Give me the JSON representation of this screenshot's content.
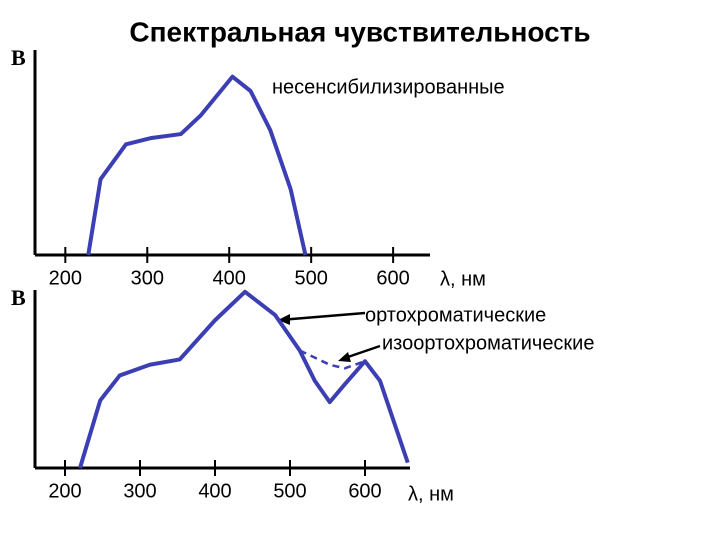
{
  "chart_data": [
    {
      "type": "line",
      "title": "Спектральная чувствительность",
      "ylabel": "B",
      "xlabel": "λ, нм",
      "xlim": [
        163,
        645
      ],
      "ylim": [
        0,
        100
      ],
      "xticks": [
        200,
        300,
        400,
        500,
        600
      ],
      "series": [
        {
          "name": "несенсибилизированные",
          "color": "#3c3fb4",
          "dashed": false,
          "x": [
            228,
            243,
            274,
            304,
            341,
            365,
            404,
            426,
            450,
            475,
            493
          ],
          "values": [
            0,
            37,
            54,
            57,
            59,
            68,
            87,
            80,
            61,
            32,
            0
          ]
        }
      ]
    },
    {
      "type": "line",
      "ylabel": "B",
      "xlabel": "λ, нм",
      "xlim": [
        160,
        660
      ],
      "ylim": [
        0,
        100
      ],
      "xticks": [
        200,
        300,
        400,
        500,
        600
      ],
      "series": [
        {
          "name": "ортохроматические",
          "color": "#3c3fb4",
          "dashed": false,
          "x": [
            220,
            247,
            273,
            313,
            353,
            400,
            440,
            480,
            513,
            533,
            553,
            573,
            600,
            620,
            657
          ],
          "values": [
            0,
            38,
            52,
            58,
            61,
            83,
            99,
            86,
            66,
            49,
            37,
            47,
            60,
            49,
            3
          ]
        },
        {
          "name": "изоортохроматические",
          "color": "#3c3fb4",
          "dashed": true,
          "x": [
            513,
            553,
            573,
            600
          ],
          "values": [
            66,
            58,
            56,
            60
          ]
        }
      ]
    }
  ]
}
